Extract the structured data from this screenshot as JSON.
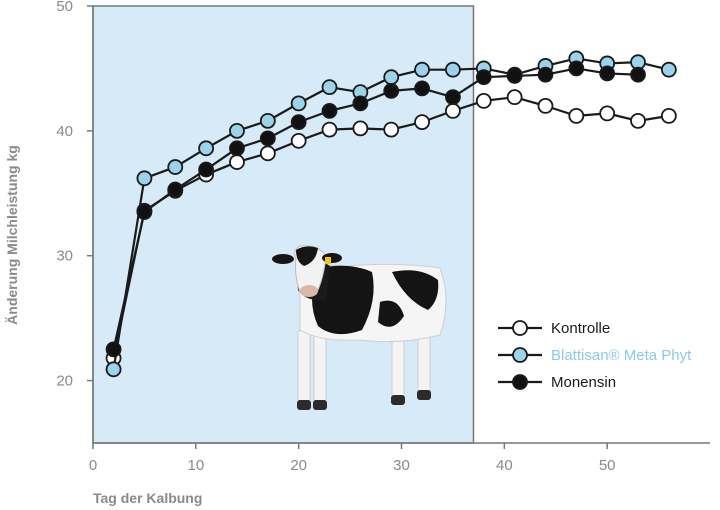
{
  "chart_data": {
    "type": "line",
    "xlabel": "Tag der Kalbung",
    "ylabel": "Änderung Milchleistung kg",
    "xlim": [
      0,
      60
    ],
    "ylim": [
      15,
      50
    ],
    "xticks": [
      0,
      10,
      20,
      30,
      40,
      50
    ],
    "yticks": [
      20,
      30,
      40,
      50
    ],
    "grid": false,
    "legend_position": "bottom-right",
    "shaded_region": {
      "x_from": 0,
      "x_to": 37,
      "color": "#d6eaf7"
    },
    "series": [
      {
        "name": "Kontrolle",
        "marker_fill": "#ffffff",
        "legend_color": "#1a1a1a",
        "x": [
          2,
          5,
          8,
          11,
          14,
          17,
          20,
          23,
          26,
          29,
          32,
          35,
          38,
          41,
          44,
          47,
          50,
          53,
          56
        ],
        "y": [
          21.8,
          33.6,
          35.2,
          36.5,
          37.5,
          38.2,
          39.2,
          40.1,
          40.2,
          40.1,
          40.7,
          41.6,
          42.4,
          42.7,
          42.0,
          41.2,
          41.4,
          40.8,
          41.2
        ]
      },
      {
        "name": "Blattisan® Meta Phyt",
        "marker_fill": "#9dd3ea",
        "legend_color": "#8cc9e6",
        "x": [
          2,
          5,
          8,
          11,
          14,
          17,
          20,
          23,
          26,
          29,
          32,
          35,
          38,
          41,
          44,
          47,
          50,
          53,
          56
        ],
        "y": [
          20.9,
          36.2,
          37.1,
          38.6,
          40.0,
          40.8,
          42.2,
          43.5,
          43.1,
          44.3,
          44.9,
          44.9,
          45.0,
          44.5,
          45.2,
          45.8,
          45.4,
          45.5,
          44.9
        ]
      },
      {
        "name": "Monensin",
        "marker_fill": "#111111",
        "legend_color": "#1a1a1a",
        "x": [
          2,
          5,
          8,
          11,
          14,
          17,
          20,
          23,
          26,
          29,
          32,
          35,
          38,
          41,
          44,
          47,
          50,
          53
        ],
        "y": [
          22.5,
          33.5,
          35.3,
          36.9,
          38.6,
          39.4,
          40.7,
          41.6,
          42.2,
          43.2,
          43.4,
          42.7,
          44.3,
          44.4,
          44.5,
          45.0,
          44.6,
          44.5
        ]
      }
    ]
  },
  "image": {
    "icon": "holstein-cow-icon"
  },
  "colors": {
    "axis": "#777777",
    "line": "#1a1a1a",
    "tick_text": "#8a8a8a",
    "shade": "#d6eaf7"
  }
}
